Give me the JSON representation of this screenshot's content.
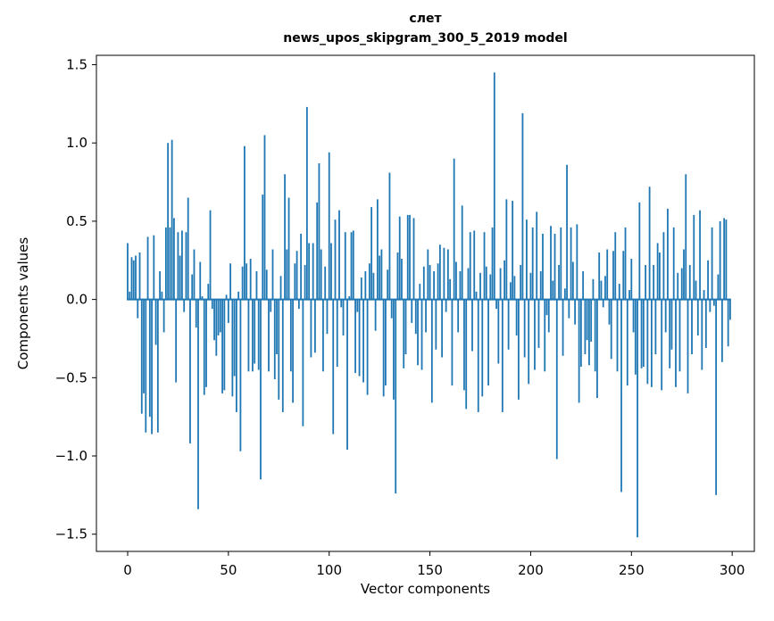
{
  "chart_data": {
    "type": "bar",
    "title": "слет",
    "subtitle": "news_upos_skipgram_300_5_2019 model",
    "xlabel": "Vector components",
    "ylabel": "Components values",
    "bar_color": "#1f77b4",
    "axis_color": "#000000",
    "xlim": [
      -15.5,
      311
    ],
    "ylim": [
      -1.61,
      1.56
    ],
    "x_ticks": [
      0,
      50,
      100,
      150,
      200,
      250,
      300
    ],
    "y_ticks": [
      -1.5,
      -1.0,
      -0.5,
      0.0,
      0.5,
      1.0,
      1.5
    ],
    "grid": false,
    "legend": "none",
    "values": [
      0.36,
      0.05,
      0.27,
      0.25,
      0.28,
      -0.12,
      0.3,
      -0.73,
      -0.6,
      -0.85,
      0.4,
      -0.75,
      -0.86,
      0.41,
      -0.29,
      -0.85,
      0.18,
      0.05,
      -0.21,
      0.46,
      1.0,
      0.46,
      1.02,
      0.52,
      -0.53,
      0.43,
      0.28,
      0.44,
      -0.08,
      0.43,
      0.65,
      -0.92,
      0.16,
      0.32,
      -0.18,
      -1.34,
      0.24,
      0.02,
      -0.61,
      -0.56,
      0.1,
      0.57,
      -0.06,
      -0.26,
      -0.36,
      -0.23,
      -0.21,
      -0.6,
      -0.58,
      0.03,
      -0.15,
      0.23,
      -0.62,
      -0.49,
      -0.72,
      0.05,
      -0.97,
      0.21,
      0.98,
      0.23,
      -0.46,
      0.26,
      -0.46,
      -0.41,
      0.18,
      -0.45,
      -1.15,
      0.67,
      1.05,
      0.19,
      -0.46,
      -0.08,
      0.32,
      -0.51,
      -0.35,
      -0.64,
      0.15,
      -0.72,
      0.8,
      0.32,
      0.65,
      -0.46,
      -0.66,
      0.23,
      0.31,
      -0.06,
      0.42,
      -0.81,
      0.22,
      1.23,
      0.36,
      -0.37,
      0.36,
      -0.34,
      0.62,
      0.87,
      0.32,
      -0.46,
      0.21,
      -0.22,
      0.94,
      0.36,
      -0.86,
      0.51,
      -0.43,
      0.57,
      -0.05,
      -0.23,
      0.43,
      -0.96,
      0.02,
      0.43,
      0.44,
      -0.47,
      -0.08,
      -0.49,
      0.14,
      -0.53,
      0.18,
      -0.61,
      0.23,
      0.59,
      0.17,
      -0.2,
      0.64,
      0.28,
      0.32,
      -0.62,
      -0.55,
      0.19,
      0.81,
      -0.12,
      -0.64,
      -1.24,
      0.3,
      0.53,
      0.26,
      -0.44,
      -0.35,
      0.54,
      0.54,
      -0.15,
      0.52,
      -0.22,
      -0.42,
      0.1,
      -0.45,
      0.21,
      -0.21,
      0.32,
      0.22,
      -0.66,
      0.18,
      -0.32,
      0.23,
      0.35,
      -0.37,
      0.33,
      -0.08,
      0.32,
      0.13,
      -0.55,
      0.9,
      0.24,
      -0.21,
      0.18,
      0.6,
      -0.58,
      -0.7,
      0.2,
      0.43,
      -0.33,
      0.44,
      0.05,
      -0.72,
      0.17,
      -0.62,
      0.43,
      0.21,
      -0.55,
      0.16,
      0.46,
      1.45,
      -0.06,
      -0.41,
      0.2,
      -0.72,
      0.25,
      0.64,
      -0.32,
      0.11,
      0.63,
      0.15,
      -0.23,
      -0.64,
      0.22,
      1.19,
      -0.37,
      0.51,
      -0.54,
      0.17,
      0.46,
      -0.45,
      0.56,
      -0.31,
      0.18,
      0.42,
      -0.46,
      -0.1,
      -0.21,
      0.47,
      0.12,
      0.42,
      -1.02,
      0.22,
      0.46,
      -0.36,
      0.07,
      0.86,
      -0.12,
      0.46,
      0.24,
      -0.16,
      0.48,
      -0.66,
      -0.43,
      0.18,
      -0.35,
      -0.26,
      -0.42,
      -0.27,
      0.13,
      -0.46,
      -0.63,
      0.3,
      0.12,
      -0.05,
      0.15,
      0.32,
      -0.16,
      -0.38,
      0.31,
      0.43,
      -0.46,
      0.1,
      -1.23,
      0.31,
      0.46,
      -0.55,
      0.06,
      0.26,
      -0.21,
      -0.48,
      -1.52,
      0.62,
      -0.44,
      -0.43,
      0.22,
      -0.54,
      0.72,
      -0.56,
      0.22,
      -0.35,
      0.36,
      0.3,
      -0.58,
      0.43,
      -0.21,
      0.58,
      -0.44,
      -0.32,
      0.46,
      -0.56,
      0.17,
      -0.46,
      0.2,
      0.32,
      0.8,
      -0.6,
      0.22,
      -0.35,
      0.54,
      0.12,
      -0.23,
      0.57,
      -0.45,
      0.06,
      -0.31,
      0.25,
      -0.08,
      0.46,
      -0.04,
      -1.25,
      0.16,
      0.5,
      -0.4,
      0.52,
      0.51,
      -0.3,
      -0.13
    ]
  }
}
